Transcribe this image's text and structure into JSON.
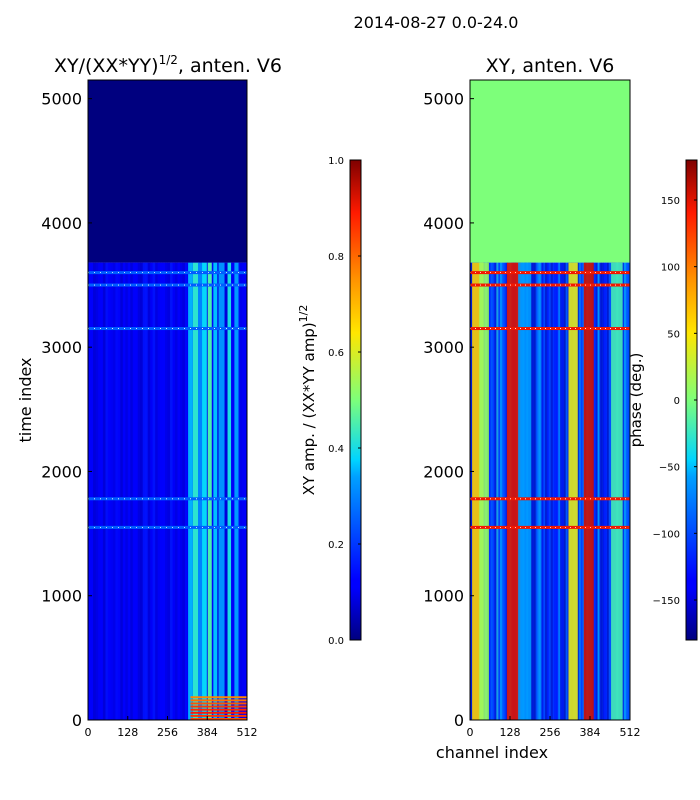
{
  "figure": {
    "suptitle": "2014-08-27 0.0-24.0",
    "shared_xlabel": "channel index"
  },
  "chart_data": [
    {
      "type": "heatmap",
      "title": "XY/(XX*YY)^{1/2}, anten. V6",
      "title_main": "XY/(XX*YY)",
      "title_sup": "1/2",
      "title_rest": ", anten. V6",
      "xlabel": "",
      "ylabel": "time index",
      "xlim": [
        0,
        512
      ],
      "ylim": [
        0,
        5150
      ],
      "xticks": [
        0,
        128,
        256,
        384,
        512
      ],
      "yticks": [
        0,
        1000,
        2000,
        3000,
        4000,
        5000
      ],
      "colormap": "jet",
      "data_end_time_index": 3680,
      "empty_region_color": "#00007f",
      "colorbar": {
        "label": "XY amp. / (XX*YY amp)^{1/2}",
        "label_main": "XY amp. / (XX*YY amp)",
        "label_sup": "1/2",
        "range": [
          0.0,
          1.0
        ],
        "ticks": [
          0.0,
          0.2,
          0.4,
          0.6,
          0.8,
          1.0
        ],
        "tick_labels": [
          "0.0",
          "0.2",
          "0.4",
          "0.6",
          "0.8",
          "1.0"
        ]
      },
      "channel_bands": [
        {
          "channel": 330,
          "value": 0.35
        },
        {
          "channel": 348,
          "value": 0.42
        },
        {
          "channel": 362,
          "value": 0.3
        },
        {
          "channel": 375,
          "value": 0.38
        },
        {
          "channel": 392,
          "value": 0.45
        },
        {
          "channel": 410,
          "value": 0.36
        },
        {
          "channel": 430,
          "value": 0.32
        },
        {
          "channel": 455,
          "value": 0.4
        },
        {
          "channel": 478,
          "value": 0.33
        }
      ],
      "flagged_time_rows": [
        1550,
        1780,
        3150,
        3500,
        3600
      ]
    },
    {
      "type": "heatmap",
      "title": "XY, anten. V6",
      "xlabel": "channel index",
      "ylabel": "",
      "xlim": [
        0,
        512
      ],
      "ylim": [
        0,
        5150
      ],
      "xticks": [
        0,
        128,
        256,
        384,
        512
      ],
      "yticks": [
        0,
        1000,
        2000,
        3000,
        4000,
        5000
      ],
      "colormap": "jet",
      "data_end_time_index": 3680,
      "empty_region_value_deg": 0,
      "colorbar": {
        "label": "phase (deg.)",
        "range": [
          -180,
          180
        ],
        "ticks": [
          -150,
          -100,
          -50,
          0,
          50,
          100,
          150
        ],
        "tick_labels": [
          "−150",
          "−100",
          "−50",
          "0",
          "50",
          "100",
          "150"
        ]
      },
      "channel_bands": [
        {
          "channel": 25,
          "value_deg": 60
        },
        {
          "channel": 45,
          "value_deg": 10
        },
        {
          "channel": 140,
          "value_deg": 150
        },
        {
          "channel": 175,
          "value_deg": -60
        },
        {
          "channel": 330,
          "value_deg": 40
        },
        {
          "channel": 380,
          "value_deg": 155
        },
        {
          "channel": 470,
          "value_deg": -20
        }
      ],
      "flagged_time_rows": [
        1550,
        1780,
        3150,
        3500,
        3600
      ]
    }
  ]
}
